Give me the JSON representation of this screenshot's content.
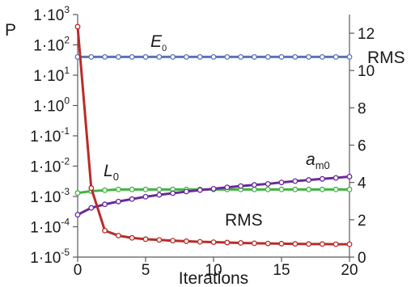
{
  "chart_data": {
    "type": "line",
    "left_axis": {
      "label": "P",
      "scale": "log",
      "ylim": [
        1e-05,
        1000
      ],
      "tick_mantissa": "1·10",
      "tick_exponents": [
        "3",
        "2",
        "1",
        "0",
        "-1",
        "-2",
        "-3",
        "-4",
        "-5"
      ]
    },
    "right_axis": {
      "label": "RMS",
      "scale": "linear",
      "ylim": [
        0,
        13
      ],
      "ticks": [
        "0",
        "2",
        "4",
        "6",
        "8",
        "10",
        "12"
      ]
    },
    "x_axis": {
      "label": "Iterations",
      "xlim": [
        0,
        20
      ],
      "ticks": [
        "0",
        "5",
        "10",
        "15",
        "20"
      ]
    },
    "x": [
      0,
      1,
      2,
      3,
      4,
      5,
      6,
      7,
      8,
      9,
      10,
      11,
      12,
      13,
      14,
      15,
      16,
      17,
      18,
      19,
      20
    ],
    "series": [
      {
        "name": "E",
        "subscript": "0",
        "axis": "left",
        "color": "#5a73b8",
        "values": [
          40,
          40,
          40,
          40,
          40,
          40,
          40,
          40,
          40,
          40,
          40,
          40,
          40,
          40,
          40,
          40,
          40,
          40,
          40,
          40,
          40
        ]
      },
      {
        "name": "L",
        "subscript": "0",
        "axis": "left",
        "color": "#3fb53f",
        "values": [
          0.0013,
          0.0015,
          0.0016,
          0.0017,
          0.0017,
          0.0017,
          0.0017,
          0.0017,
          0.0017,
          0.0017,
          0.0017,
          0.0017,
          0.0017,
          0.0017,
          0.0017,
          0.0017,
          0.0017,
          0.0017,
          0.0017,
          0.0017,
          0.0017
        ]
      },
      {
        "name": "a",
        "subscript": "m0",
        "axis": "left",
        "color": "#6a2a9a",
        "values": [
          0.00025,
          0.00042,
          0.00055,
          0.00068,
          0.00082,
          0.00098,
          0.00113,
          0.00128,
          0.00145,
          0.00162,
          0.0018,
          0.002,
          0.0022,
          0.0024,
          0.0026,
          0.0029,
          0.0032,
          0.0035,
          0.0038,
          0.0041,
          0.0045
        ]
      },
      {
        "name": "RMS",
        "subscript": "",
        "axis": "right",
        "color": "#b82c2a",
        "values": [
          12.35,
          3.7,
          1.42,
          1.15,
          1.03,
          0.96,
          0.92,
          0.88,
          0.85,
          0.82,
          0.8,
          0.78,
          0.76,
          0.74,
          0.73,
          0.72,
          0.71,
          0.7,
          0.7,
          0.69,
          0.69
        ]
      }
    ]
  }
}
